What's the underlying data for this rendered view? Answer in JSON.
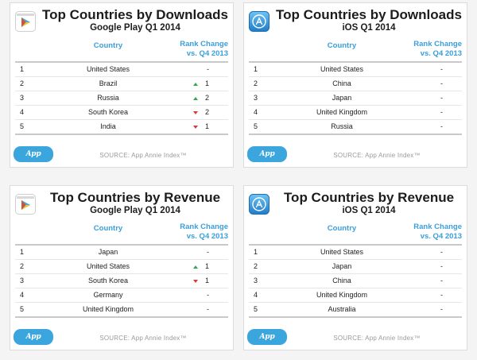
{
  "panels": [
    {
      "icon": "google-play-icon",
      "title": "Top Countries by Downloads",
      "subtitle": "Google Play Q1 2014",
      "col_country": "Country",
      "col_rank_1": "Rank Change",
      "col_rank_2": "vs. Q4 2013",
      "rows": [
        {
          "rank": "1",
          "country": "United States",
          "change": "-",
          "direction": ""
        },
        {
          "rank": "2",
          "country": "Brazil",
          "change": "1",
          "direction": "up"
        },
        {
          "rank": "3",
          "country": "Russia",
          "change": "2",
          "direction": "up"
        },
        {
          "rank": "4",
          "country": "South Korea",
          "change": "2",
          "direction": "down"
        },
        {
          "rank": "5",
          "country": "India",
          "change": "1",
          "direction": "down"
        }
      ],
      "logo": "App Annie",
      "source": "SOURCE: App Annie Index™"
    },
    {
      "icon": "app-store-icon",
      "title": "Top Countries by Downloads",
      "subtitle": "iOS Q1 2014",
      "col_country": "Country",
      "col_rank_1": "Rank Change",
      "col_rank_2": "vs. Q4 2013",
      "rows": [
        {
          "rank": "1",
          "country": "United States",
          "change": "-",
          "direction": ""
        },
        {
          "rank": "2",
          "country": "China",
          "change": "-",
          "direction": ""
        },
        {
          "rank": "3",
          "country": "Japan",
          "change": "-",
          "direction": ""
        },
        {
          "rank": "4",
          "country": "United Kingdom",
          "change": "-",
          "direction": ""
        },
        {
          "rank": "5",
          "country": "Russia",
          "change": "-",
          "direction": ""
        }
      ],
      "logo": "App Annie",
      "source": "SOURCE: App Annie Index™"
    },
    {
      "icon": "google-play-icon",
      "title": "Top Countries by Revenue",
      "subtitle": "Google Play Q1 2014",
      "col_country": "Country",
      "col_rank_1": "Rank Change",
      "col_rank_2": "vs. Q4 2013",
      "rows": [
        {
          "rank": "1",
          "country": "Japan",
          "change": "-",
          "direction": ""
        },
        {
          "rank": "2",
          "country": "United States",
          "change": "1",
          "direction": "up"
        },
        {
          "rank": "3",
          "country": "South Korea",
          "change": "1",
          "direction": "down"
        },
        {
          "rank": "4",
          "country": "Germany",
          "change": "-",
          "direction": ""
        },
        {
          "rank": "5",
          "country": "United Kingdom",
          "change": "-",
          "direction": ""
        }
      ],
      "logo": "App Annie",
      "source": "SOURCE: App Annie Index™"
    },
    {
      "icon": "app-store-icon",
      "title": "Top Countries by Revenue",
      "subtitle": "iOS Q1 2014",
      "col_country": "Country",
      "col_rank_1": "Rank Change",
      "col_rank_2": "vs. Q4 2013",
      "rows": [
        {
          "rank": "1",
          "country": "United States",
          "change": "-",
          "direction": ""
        },
        {
          "rank": "2",
          "country": "Japan",
          "change": "-",
          "direction": ""
        },
        {
          "rank": "3",
          "country": "China",
          "change": "-",
          "direction": ""
        },
        {
          "rank": "4",
          "country": "United Kingdom",
          "change": "-",
          "direction": ""
        },
        {
          "rank": "5",
          "country": "Australia",
          "change": "-",
          "direction": ""
        }
      ],
      "logo": "App Annie",
      "source": "SOURCE: App Annie Index™"
    }
  ],
  "colors": {
    "header_blue": "#3a9fdc",
    "up_arrow": "#36a64f",
    "down_arrow": "#d63b3b",
    "logo_bg": "#3aa6dd"
  }
}
